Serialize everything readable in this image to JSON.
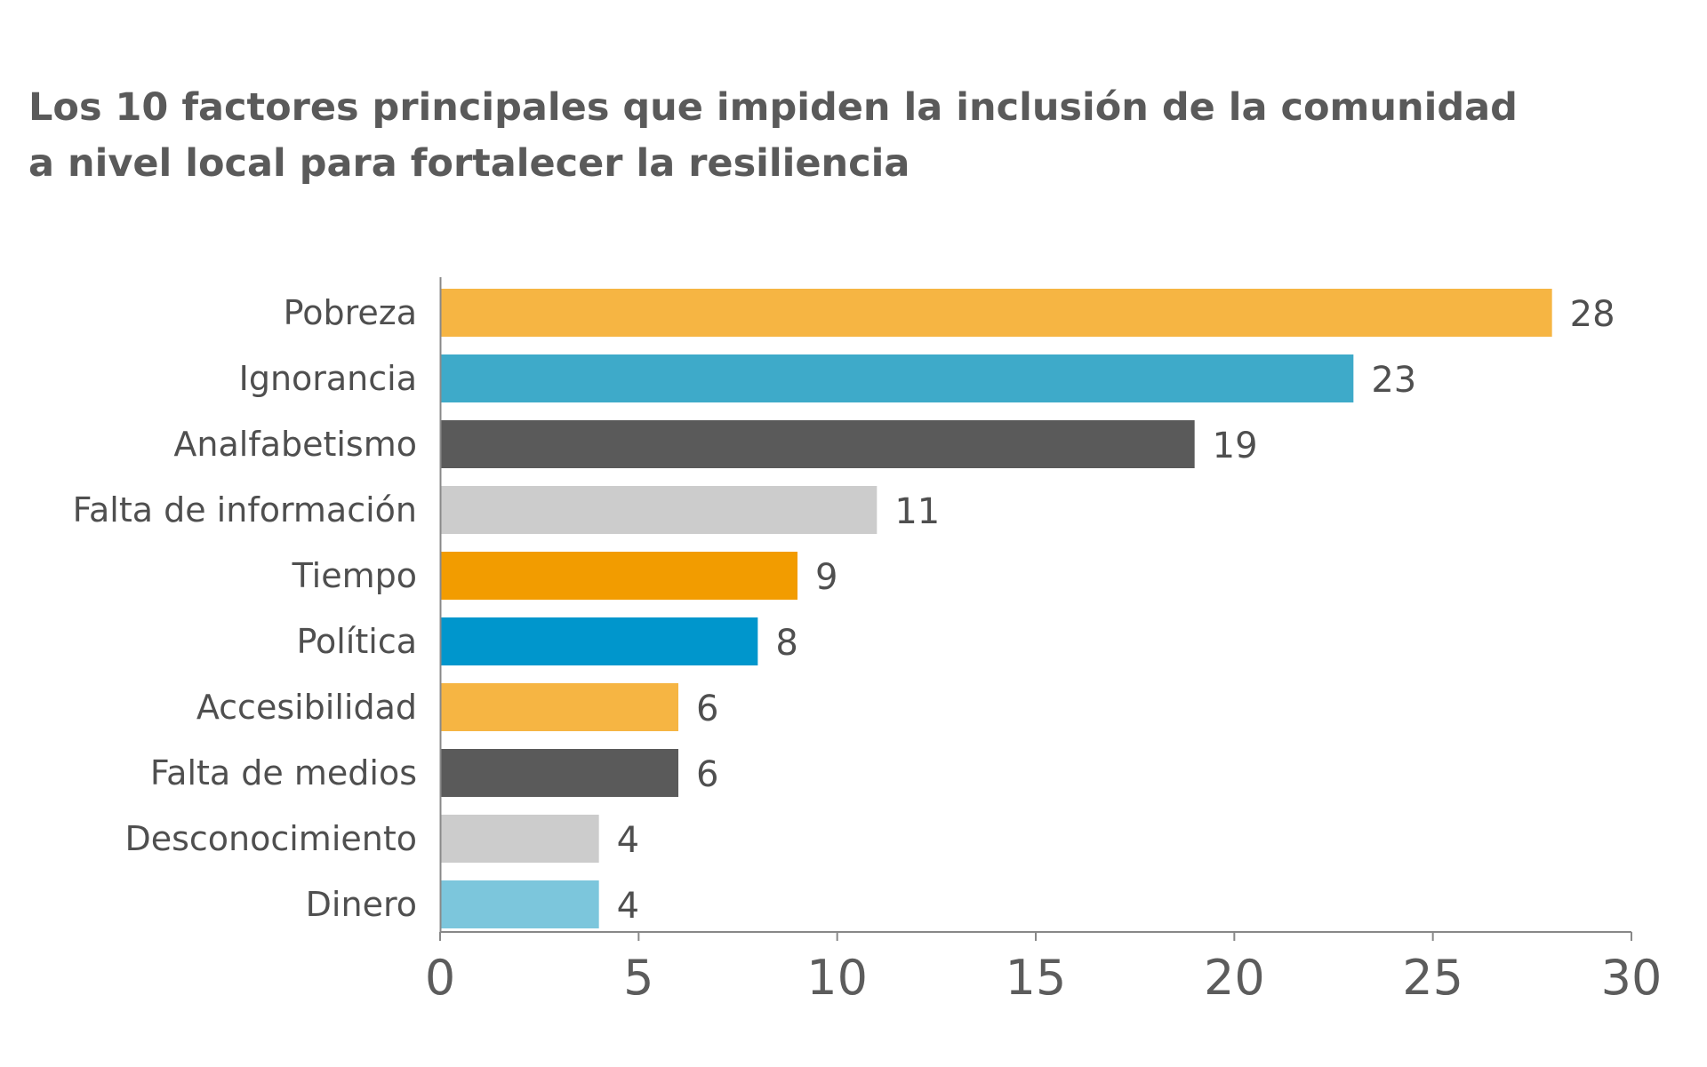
{
  "chart_data": {
    "type": "bar",
    "orientation": "horizontal",
    "title_lines": [
      "Los 10 factores principales que impiden la inclusión de la comunidad",
      "a nivel local para fortalecer la resiliencia"
    ],
    "categories": [
      "Pobreza",
      "Ignorancia",
      "Analfabetismo",
      "Falta de información",
      "Tiempo",
      "Política",
      "Accesibilidad",
      "Falta de medios",
      "Desconocimiento",
      "Dinero"
    ],
    "values": [
      28,
      23,
      19,
      11,
      9,
      8,
      6,
      6,
      4,
      4
    ],
    "bar_colors": [
      "#f6b543",
      "#3eaac9",
      "#5a5a5a",
      "#cccccc",
      "#f29c00",
      "#0096cc",
      "#f6b543",
      "#5a5a5a",
      "#cccccc",
      "#7cc6dc"
    ],
    "xlim": [
      0,
      30
    ],
    "xticks": [
      0,
      5,
      10,
      15,
      20,
      25,
      30
    ],
    "grid": false,
    "legend": "none",
    "axis_color": "#888888"
  }
}
